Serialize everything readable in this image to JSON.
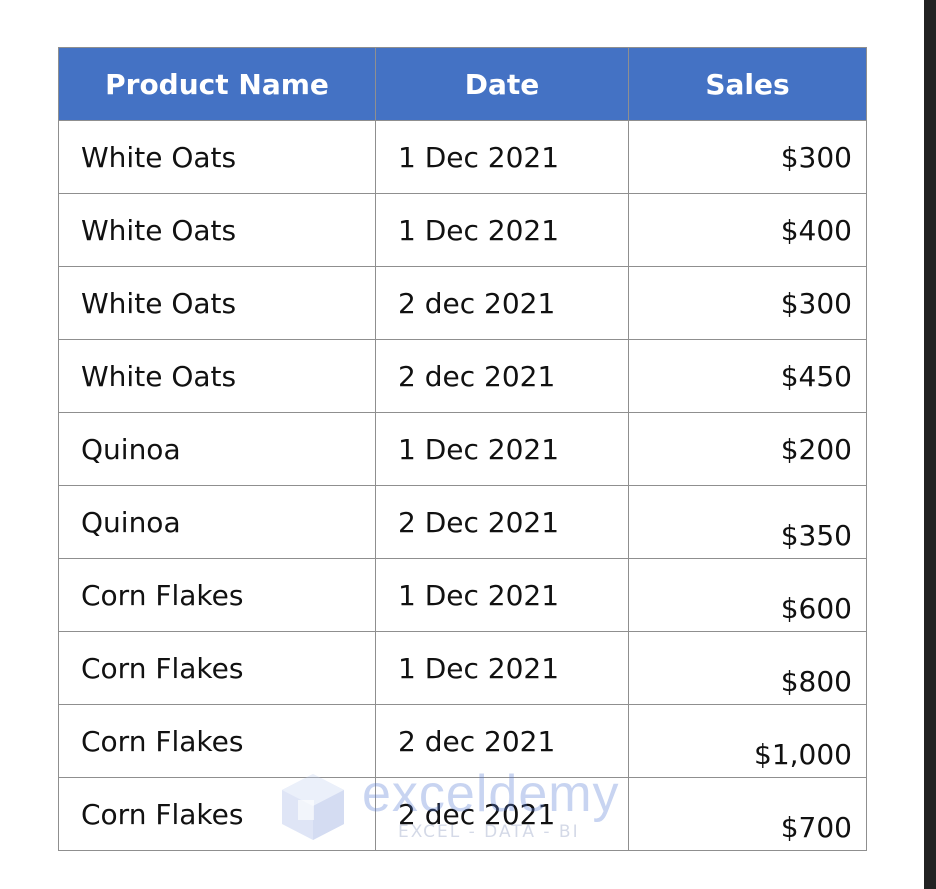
{
  "table": {
    "headers": [
      "Product Name",
      "Date",
      "Sales"
    ],
    "rows": [
      {
        "product": "White Oats",
        "date": "1 Dec 2021",
        "sales": "$300"
      },
      {
        "product": "White Oats",
        "date": "1 Dec 2021",
        "sales": "$400"
      },
      {
        "product": "White Oats",
        "date": "2 dec 2021",
        "sales": "$300"
      },
      {
        "product": "White Oats",
        "date": "2 dec 2021",
        "sales": "$450"
      },
      {
        "product": "Quinoa",
        "date": "1 Dec 2021",
        "sales": "$200"
      },
      {
        "product": "Quinoa",
        "date": "2 Dec 2021",
        "sales": "$350"
      },
      {
        "product": "Corn Flakes",
        "date": "1 Dec 2021",
        "sales": "$600"
      },
      {
        "product": "Corn Flakes",
        "date": "1 Dec 2021",
        "sales": "$800"
      },
      {
        "product": "Corn Flakes",
        "date": "2 dec 2021",
        "sales": "$1,000"
      },
      {
        "product": "Corn Flakes",
        "date": "2 dec 2021",
        "sales": "$700"
      }
    ]
  },
  "watermark": {
    "brand": "exceldemy",
    "tagline": "EXCEL - DATA - BI"
  },
  "colors": {
    "header_bg": "#4472c4",
    "header_text": "#ffffff",
    "grid_border": "#8f8f8f"
  }
}
